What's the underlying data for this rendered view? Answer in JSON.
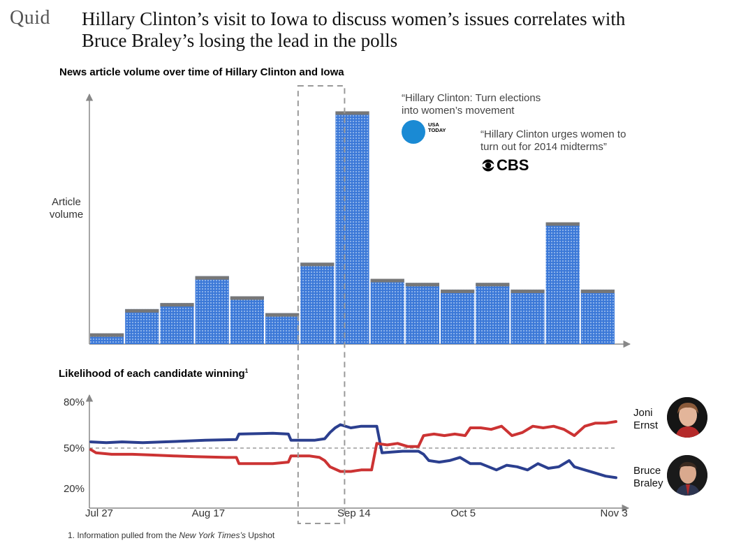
{
  "logo": "Quid",
  "title_lines": [
    "Hillary Clinton’s visit to Iowa to discuss women’s issues correlates with",
    "Bruce Braley’s losing the lead in the polls"
  ],
  "news_section_title": "News article volume over time of Hillary Clinton and Iowa",
  "poll_section_title": "Likelihood of each candidate winning",
  "poll_section_footnote_mark": "1",
  "quote_usa_lines": [
    "“Hillary Clinton: Turn elections",
    "into women’s movement"
  ],
  "usa_today_lines": [
    "USA",
    "TODAY"
  ],
  "quote_cbs_lines": [
    "“Hillary Clinton urges women to",
    "turn out for 2014 midterms”"
  ],
  "cbs_label": "CBS",
  "candidates": {
    "ernst_lines": [
      "Joni",
      "Ernst"
    ],
    "braley_lines": [
      "Bruce",
      "Braley"
    ]
  },
  "footnote": {
    "prefix": "1. Information pulled from the ",
    "italic": "New York Times’s",
    "suffix": " Upshot"
  },
  "colors": {
    "bar_fill": "#3b78d8",
    "bar_top": "#777777",
    "blue_line": "#2b3f8f",
    "red_line": "#cc3333",
    "usa_today": "#1a8ad4"
  },
  "chart_data": [
    {
      "type": "bar",
      "title": "News article volume over time of Hillary Clinton and Iowa",
      "ylabel_lines": [
        "Article",
        "volume"
      ],
      "xlabel": "",
      "values": [
        16,
        52,
        61,
        101,
        71,
        46,
        121,
        346,
        97,
        91,
        81,
        91,
        81,
        181,
        81
      ],
      "ylim": [
        0,
        360
      ],
      "highlight_index": 7,
      "grid": false
    },
    {
      "type": "line",
      "title": "Likelihood of each candidate winning",
      "x_tick_labels": [
        "Jul 27",
        "Aug 17",
        "Sep 14",
        "Oct 5",
        "Nov 3"
      ],
      "x_tick_days": [
        0,
        21,
        49,
        70,
        99
      ],
      "y_tick_labels": [
        "80%",
        "50%",
        "20%"
      ],
      "y_tick_values": [
        80,
        50,
        20
      ],
      "ylim": [
        20,
        80
      ],
      "reference_line": 50,
      "highlight_days": [
        40,
        48
      ],
      "series": [
        {
          "name": "Bruce Braley",
          "color": "#2b3f8f",
          "points": [
            [
              0,
              54
            ],
            [
              3,
              53.5
            ],
            [
              6,
              54
            ],
            [
              10,
              53.5
            ],
            [
              14,
              54
            ],
            [
              18,
              54.5
            ],
            [
              22,
              55
            ],
            [
              28,
              55.5
            ],
            [
              28.5,
              59
            ],
            [
              35,
              59.5
            ],
            [
              38,
              59
            ],
            [
              38.5,
              55
            ],
            [
              43,
              55
            ],
            [
              45,
              56
            ],
            [
              46,
              60
            ],
            [
              47,
              63
            ],
            [
              48,
              65
            ],
            [
              50,
              63
            ],
            [
              52,
              64
            ],
            [
              55,
              64
            ],
            [
              56,
              47
            ],
            [
              60,
              48
            ],
            [
              63,
              48
            ],
            [
              64,
              46
            ],
            [
              65,
              42
            ],
            [
              67,
              41
            ],
            [
              69,
              42
            ],
            [
              71,
              44
            ],
            [
              73,
              40
            ],
            [
              75,
              40
            ],
            [
              78,
              36
            ],
            [
              80,
              39
            ],
            [
              82,
              38
            ],
            [
              84,
              36
            ],
            [
              86,
              40
            ],
            [
              88,
              37
            ],
            [
              90,
              38
            ],
            [
              92,
              42
            ],
            [
              93,
              38
            ],
            [
              95,
              36
            ],
            [
              97,
              34
            ],
            [
              99,
              32
            ],
            [
              101,
              31
            ]
          ]
        },
        {
          "name": "Joni Ernst",
          "color": "#cc3333",
          "points": [
            [
              0,
              49
            ],
            [
              1,
              47
            ],
            [
              4,
              46
            ],
            [
              8,
              46
            ],
            [
              12,
              45.5
            ],
            [
              16,
              45
            ],
            [
              20,
              44.5
            ],
            [
              26,
              44
            ],
            [
              28,
              44
            ],
            [
              28.5,
              40
            ],
            [
              35,
              40
            ],
            [
              38,
              41
            ],
            [
              38.5,
              45
            ],
            [
              42,
              45
            ],
            [
              44,
              44
            ],
            [
              45,
              42
            ],
            [
              46,
              38
            ],
            [
              48,
              35
            ],
            [
              50,
              35
            ],
            [
              52,
              36
            ],
            [
              54,
              36
            ],
            [
              55,
              53
            ],
            [
              57,
              52
            ],
            [
              59,
              53
            ],
            [
              61,
              51
            ],
            [
              63,
              51
            ],
            [
              64,
              58
            ],
            [
              66,
              59
            ],
            [
              68,
              58
            ],
            [
              70,
              59
            ],
            [
              72,
              58
            ],
            [
              73,
              63
            ],
            [
              75,
              63
            ],
            [
              77,
              62
            ],
            [
              79,
              64
            ],
            [
              81,
              58
            ],
            [
              83,
              60
            ],
            [
              85,
              64
            ],
            [
              87,
              63
            ],
            [
              89,
              64
            ],
            [
              91,
              62
            ],
            [
              93,
              58
            ],
            [
              95,
              64
            ],
            [
              97,
              66
            ],
            [
              99,
              66
            ],
            [
              101,
              67
            ]
          ]
        }
      ]
    }
  ]
}
